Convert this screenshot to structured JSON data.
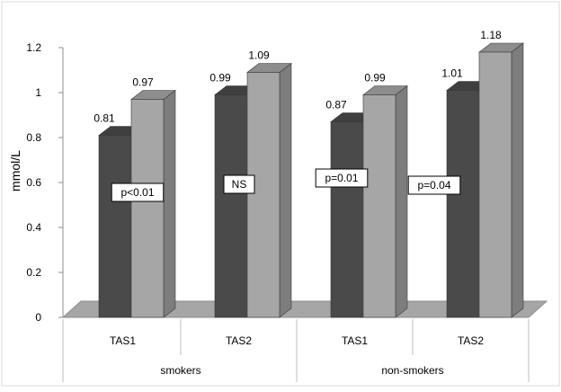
{
  "chart_data": {
    "type": "bar",
    "ylabel": "mmol/L",
    "ylim": [
      0,
      1.2
    ],
    "ytick_step": 0.2,
    "yticks": [
      "0",
      "0.2",
      "0.4",
      "0.6",
      "0.8",
      "1",
      "1.2"
    ],
    "groups": [
      {
        "label": "smokers",
        "categories": [
          {
            "label": "TAS1",
            "values": [
              0.81,
              0.97
            ],
            "value_labels": [
              "0.81",
              "0.97"
            ],
            "annotation": "p<0.01"
          },
          {
            "label": "TAS2",
            "values": [
              0.99,
              1.09
            ],
            "value_labels": [
              "0.99",
              "1.09"
            ],
            "annotation": "NS"
          }
        ]
      },
      {
        "label": "non-smokers",
        "categories": [
          {
            "label": "TAS1",
            "values": [
              0.87,
              0.99
            ],
            "value_labels": [
              "0.87",
              "0.99"
            ],
            "annotation": "p=0.01"
          },
          {
            "label": "TAS2",
            "values": [
              1.01,
              1.18
            ],
            "value_labels": [
              "1.01",
              "1.18"
            ],
            "annotation": "p=0.04"
          }
        ]
      }
    ],
    "series_colors": [
      "#4a4a4a",
      "#a6a6a6"
    ],
    "grid": false,
    "legend": "none"
  }
}
